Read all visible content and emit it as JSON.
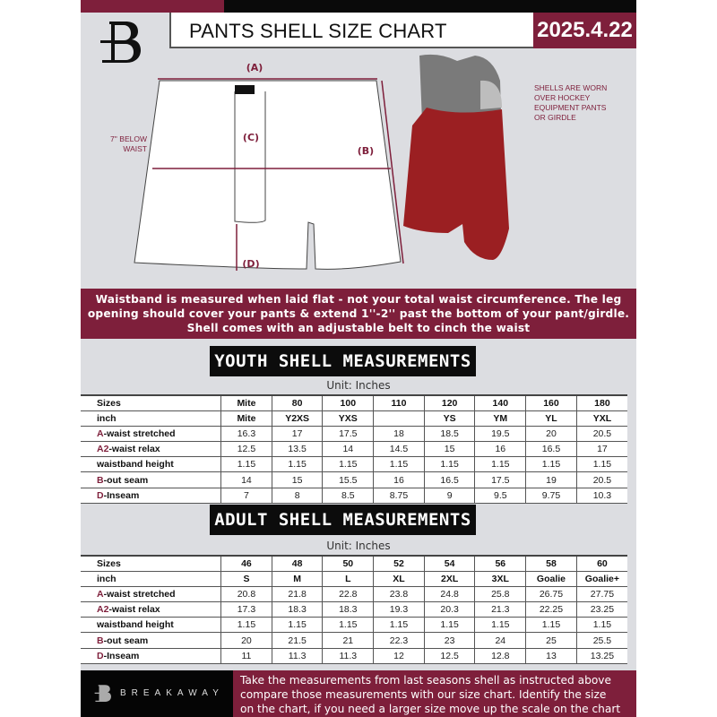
{
  "header": {
    "title": "PANTS SHELL SIZE CHART",
    "date": "2025.4.22"
  },
  "diagram": {
    "label_a": "(A)",
    "label_b": "(B)",
    "label_c": "(C)",
    "label_d": "(D)",
    "c_note": [
      "7'' BELOW",
      "WAIST"
    ],
    "shell_note": [
      "SHELLS ARE WORN",
      "OVER HOCKEY",
      "EQUIPMENT PANTS",
      "OR GIRDLE"
    ]
  },
  "banner": [
    "Waistband is measured when laid flat - not your total waist circumference. The leg",
    "opening should cover your pants & extend 1''-2'' past the bottom of your pant/girdle.",
    "Shell comes with an adjustable belt to cinch the waist"
  ],
  "colors": {
    "maroon": "#7e1f3b",
    "black": "#0a0a0a",
    "background": "#dcdde1"
  },
  "youth": {
    "title": "YOUTH SHELL MEASUREMENTS",
    "unit": "Unit: Inches",
    "rows": [
      {
        "p": "",
        "l": "Sizes",
        "v": [
          "Mite",
          "80",
          "100",
          "110",
          "120",
          "140",
          "160",
          "180"
        ]
      },
      {
        "p": "",
        "l": "inch",
        "v": [
          "Mite",
          "Y2XS",
          "YXS",
          "",
          "YS",
          "YM",
          "YL",
          "YXL"
        ]
      },
      {
        "p": "A",
        "l": "-waist stretched",
        "v": [
          "16.3",
          "17",
          "17.5",
          "18",
          "18.5",
          "19.5",
          "20",
          "20.5"
        ]
      },
      {
        "p": "A2",
        "l": "-waist relax",
        "v": [
          "12.5",
          "13.5",
          "14",
          "14.5",
          "15",
          "16",
          "16.5",
          "17"
        ]
      },
      {
        "p": "",
        "l": "waistband height",
        "v": [
          "1.15",
          "1.15",
          "1.15",
          "1.15",
          "1.15",
          "1.15",
          "1.15",
          "1.15"
        ]
      },
      {
        "p": "B",
        "l": "-out seam",
        "v": [
          "14",
          "15",
          "15.5",
          "16",
          "16.5",
          "17.5",
          "19",
          "20.5"
        ]
      },
      {
        "p": "D",
        "l": "-Inseam",
        "v": [
          "7",
          "8",
          "8.5",
          "8.75",
          "9",
          "9.5",
          "9.75",
          "10.3"
        ]
      }
    ]
  },
  "adult": {
    "title": "ADULT SHELL MEASUREMENTS",
    "unit": "Unit: Inches",
    "rows": [
      {
        "p": "",
        "l": "Sizes",
        "v": [
          "46",
          "48",
          "50",
          "52",
          "54",
          "56",
          "58",
          "60"
        ]
      },
      {
        "p": "",
        "l": "inch",
        "v": [
          "S",
          "M",
          "L",
          "XL",
          "2XL",
          "3XL",
          "Goalie",
          "Goalie+"
        ]
      },
      {
        "p": "A",
        "l": "-waist stretched",
        "v": [
          "20.8",
          "21.8",
          "22.8",
          "23.8",
          "24.8",
          "25.8",
          "26.75",
          "27.75"
        ]
      },
      {
        "p": "A2",
        "l": "-waist relax",
        "v": [
          "17.3",
          "18.3",
          "18.3",
          "19.3",
          "20.3",
          "21.3",
          "22.25",
          "23.25"
        ]
      },
      {
        "p": "",
        "l": "waistband height",
        "v": [
          "1.15",
          "1.15",
          "1.15",
          "1.15",
          "1.15",
          "1.15",
          "1.15",
          "1.15"
        ]
      },
      {
        "p": "B",
        "l": "-out seam",
        "v": [
          "20",
          "21.5",
          "21",
          "22.3",
          "23",
          "24",
          "25",
          "25.5"
        ]
      },
      {
        "p": "D",
        "l": "-Inseam",
        "v": [
          "11",
          "11.3",
          "11.3",
          "12",
          "12.5",
          "12.8",
          "13",
          "13.25"
        ]
      }
    ]
  },
  "footer": {
    "brand": "BREAKAWAY",
    "text": [
      "Take the measurements from last seasons shell as instructed above",
      "compare those measurements  with our size chart. Identify the size",
      "on the chart, if you need a larger size move up the scale on the chart"
    ]
  }
}
